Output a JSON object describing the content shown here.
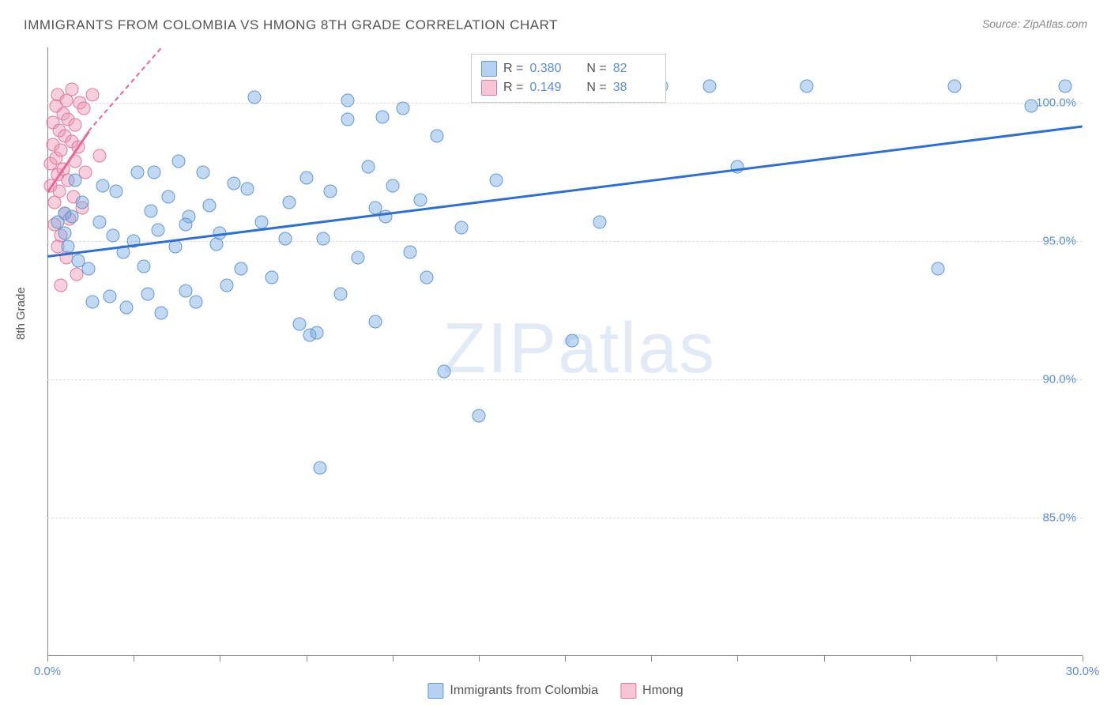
{
  "title": "IMMIGRANTS FROM COLOMBIA VS HMONG 8TH GRADE CORRELATION CHART",
  "source": "Source: ZipAtlas.com",
  "ylabel": "8th Grade",
  "watermark": "ZIPatlas",
  "chart": {
    "type": "scatter",
    "background_color": "#ffffff",
    "grid_color": "#dcdcdc",
    "axis_color": "#888888",
    "xlim": [
      0,
      30
    ],
    "ylim": [
      80,
      102
    ],
    "ytick_labels": [
      "85.0%",
      "90.0%",
      "95.0%",
      "100.0%"
    ],
    "ytick_vals": [
      85,
      90,
      95,
      100
    ],
    "xtick_label_left": "0.0%",
    "xtick_label_right": "30.0%",
    "xtick_positions": [
      0,
      2.5,
      5,
      7.5,
      10,
      12.5,
      15,
      17.5,
      20,
      22.5,
      25,
      27.5,
      30
    ],
    "marker_size": 17,
    "marker_opacity": 0.45,
    "tick_font_color": "#5b8fd6",
    "tick_fontsize": 15,
    "title_fontsize": 17,
    "title_color": "#555555"
  },
  "legend_stats": {
    "rows": [
      {
        "r_label": "R =",
        "r_val": "0.380",
        "n_label": "N =",
        "n_val": "82",
        "swatch": "blue"
      },
      {
        "r_label": "R =",
        "r_val": "0.149",
        "n_label": "N =",
        "n_val": "38",
        "swatch": "pink"
      }
    ]
  },
  "bottom_legend": {
    "items": [
      {
        "label": "Immigrants from Colombia",
        "swatch": "blue"
      },
      {
        "label": "Hmong",
        "swatch": "pink"
      }
    ]
  },
  "series": {
    "colombia": {
      "label": "Immigrants from Colombia",
      "color_fill": "rgba(120,170,230,0.45)",
      "color_stroke": "#6699cc",
      "trend_color": "#2e6fd6",
      "trend": {
        "x1": 0,
        "y1": 94.5,
        "x2": 30,
        "y2": 99.2
      },
      "points": [
        [
          0.3,
          95.7
        ],
        [
          0.5,
          96.0
        ],
        [
          0.5,
          95.3
        ],
        [
          0.6,
          94.8
        ],
        [
          0.7,
          95.9
        ],
        [
          0.8,
          97.2
        ],
        [
          0.9,
          94.3
        ],
        [
          1.0,
          96.4
        ],
        [
          1.2,
          94.0
        ],
        [
          1.3,
          92.8
        ],
        [
          1.5,
          95.7
        ],
        [
          1.6,
          97.0
        ],
        [
          1.8,
          93.0
        ],
        [
          1.9,
          95.2
        ],
        [
          2.0,
          96.8
        ],
        [
          2.2,
          94.6
        ],
        [
          2.3,
          92.6
        ],
        [
          2.5,
          95.0
        ],
        [
          2.6,
          97.5
        ],
        [
          2.8,
          94.1
        ],
        [
          2.9,
          93.1
        ],
        [
          3.0,
          96.1
        ],
        [
          3.2,
          95.4
        ],
        [
          3.3,
          92.4
        ],
        [
          3.5,
          96.6
        ],
        [
          3.7,
          94.8
        ],
        [
          3.8,
          97.9
        ],
        [
          4.0,
          93.2
        ],
        [
          4.1,
          95.9
        ],
        [
          4.3,
          92.8
        ],
        [
          4.5,
          97.5
        ],
        [
          4.7,
          96.3
        ],
        [
          4.9,
          94.9
        ],
        [
          5.0,
          95.3
        ],
        [
          5.2,
          93.4
        ],
        [
          5.4,
          97.1
        ],
        [
          5.6,
          94.0
        ],
        [
          5.8,
          96.9
        ],
        [
          6.0,
          100.2
        ],
        [
          6.2,
          95.7
        ],
        [
          6.5,
          93.7
        ],
        [
          7.0,
          96.4
        ],
        [
          7.3,
          92.0
        ],
        [
          7.5,
          97.3
        ],
        [
          7.6,
          91.6
        ],
        [
          7.8,
          91.7
        ],
        [
          7.9,
          86.8
        ],
        [
          8.0,
          95.1
        ],
        [
          8.2,
          96.8
        ],
        [
          8.5,
          93.1
        ],
        [
          8.7,
          100.1
        ],
        [
          8.7,
          99.4
        ],
        [
          9.0,
          94.4
        ],
        [
          9.3,
          97.7
        ],
        [
          9.5,
          92.1
        ],
        [
          9.5,
          96.2
        ],
        [
          9.7,
          99.5
        ],
        [
          9.8,
          95.9
        ],
        [
          10.0,
          97.0
        ],
        [
          10.3,
          99.8
        ],
        [
          10.5,
          94.6
        ],
        [
          10.8,
          96.5
        ],
        [
          11.0,
          93.7
        ],
        [
          11.3,
          98.8
        ],
        [
          11.5,
          90.3
        ],
        [
          12.0,
          95.5
        ],
        [
          12.5,
          88.7
        ],
        [
          13.0,
          97.2
        ],
        [
          13.5,
          100.5
        ],
        [
          15.2,
          91.4
        ],
        [
          16.0,
          95.7
        ],
        [
          17.8,
          100.6
        ],
        [
          19.2,
          100.6
        ],
        [
          20.0,
          97.7
        ],
        [
          22.0,
          100.6
        ],
        [
          26.3,
          100.6
        ],
        [
          25.8,
          94.0
        ],
        [
          28.5,
          99.9
        ],
        [
          29.5,
          100.6
        ],
        [
          6.9,
          95.1
        ],
        [
          4.0,
          95.6
        ],
        [
          3.1,
          97.5
        ]
      ]
    },
    "hmong": {
      "label": "Hmong",
      "color_fill": "rgba(240,150,180,0.45)",
      "color_stroke": "#e07a9a",
      "trend_color": "#e66a94",
      "trend": {
        "x1": 0,
        "y1": 96.8,
        "x2": 1.2,
        "y2": 99.0
      },
      "trend_dash": {
        "x1": 1.2,
        "y1": 99.0,
        "x2": 3.3,
        "y2": 102.0
      },
      "points": [
        [
          0.1,
          97.0
        ],
        [
          0.1,
          97.8
        ],
        [
          0.15,
          98.5
        ],
        [
          0.15,
          99.3
        ],
        [
          0.2,
          96.4
        ],
        [
          0.2,
          95.6
        ],
        [
          0.25,
          98.0
        ],
        [
          0.25,
          99.9
        ],
        [
          0.3,
          97.4
        ],
        [
          0.3,
          100.3
        ],
        [
          0.3,
          94.8
        ],
        [
          0.35,
          99.0
        ],
        [
          0.35,
          96.8
        ],
        [
          0.4,
          98.3
        ],
        [
          0.4,
          95.2
        ],
        [
          0.45,
          97.6
        ],
        [
          0.45,
          99.6
        ],
        [
          0.5,
          96.0
        ],
        [
          0.5,
          98.8
        ],
        [
          0.55,
          100.1
        ],
        [
          0.55,
          94.4
        ],
        [
          0.6,
          97.2
        ],
        [
          0.6,
          99.4
        ],
        [
          0.65,
          95.8
        ],
        [
          0.7,
          98.6
        ],
        [
          0.7,
          100.5
        ],
        [
          0.75,
          96.6
        ],
        [
          0.8,
          99.2
        ],
        [
          0.8,
          97.9
        ],
        [
          0.85,
          93.8
        ],
        [
          0.9,
          98.4
        ],
        [
          0.95,
          100.0
        ],
        [
          1.0,
          96.2
        ],
        [
          1.05,
          99.8
        ],
        [
          1.1,
          97.5
        ],
        [
          1.3,
          100.3
        ],
        [
          1.5,
          98.1
        ],
        [
          0.4,
          93.4
        ]
      ]
    }
  }
}
